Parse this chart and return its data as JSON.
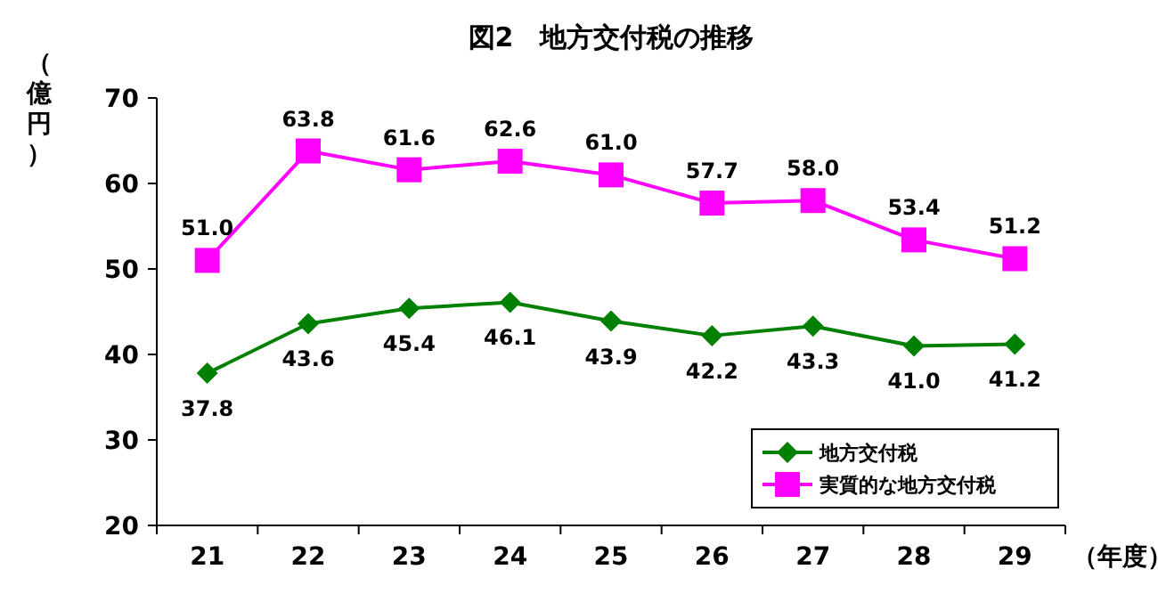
{
  "chart_data": {
    "type": "line",
    "title": "図2　地方交付税の推移",
    "ylabel": "（億円）",
    "xlabel": "（年度）",
    "categories": [
      "21",
      "22",
      "23",
      "24",
      "25",
      "26",
      "27",
      "28",
      "29"
    ],
    "series": [
      {
        "name": "地方交付税",
        "color": "#008000",
        "marker": "diamond",
        "values": [
          37.8,
          43.6,
          45.4,
          46.1,
          43.9,
          42.2,
          43.3,
          41.0,
          41.2
        ],
        "value_labels": [
          "37.8",
          "43.6",
          "45.4",
          "46.1",
          "43.9",
          "42.2",
          "43.3",
          "41.0",
          "41.2"
        ]
      },
      {
        "name": "実質的な地方交付税",
        "color": "#ff00ff",
        "marker": "square",
        "values": [
          51.0,
          63.8,
          61.6,
          62.6,
          61.0,
          57.7,
          58.0,
          53.4,
          51.2
        ],
        "value_labels": [
          "51.0",
          "63.8",
          "61.6",
          "62.6",
          "61.0",
          "57.7",
          "58.0",
          "53.4",
          "51.2"
        ]
      }
    ],
    "ylim": [
      20,
      70
    ],
    "yticks": [
      20,
      30,
      40,
      50,
      60,
      70
    ],
    "grid": false,
    "legend": "bottom right"
  }
}
